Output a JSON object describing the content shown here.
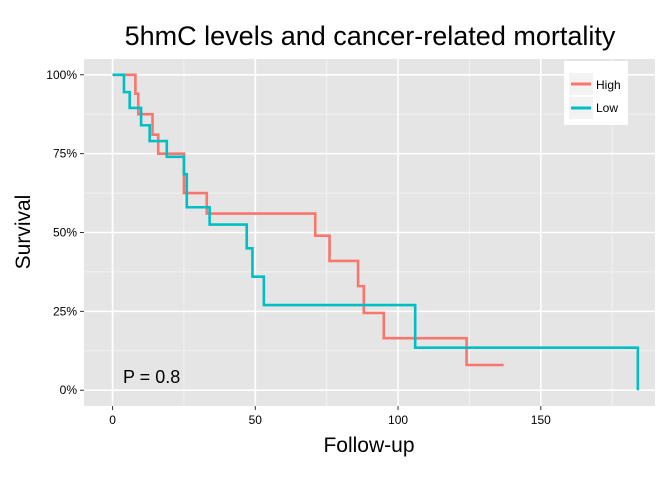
{
  "chart_data": {
    "type": "line",
    "subtype": "kaplan-meier step",
    "title": "5hmC levels and cancer-related mortality",
    "xlabel": "Follow-up",
    "ylabel": "Survival",
    "xlim": [
      -10,
      190
    ],
    "ylim": [
      -0.05,
      1.05
    ],
    "x_ticks": [
      0,
      50,
      100,
      150
    ],
    "x_tick_labels": [
      "0",
      "50",
      "100",
      "150"
    ],
    "y_ticks": [
      0,
      0.25,
      0.5,
      0.75,
      1.0
    ],
    "y_tick_labels": [
      "0%",
      "25%",
      "50%",
      "75%",
      "100%"
    ],
    "grid": true,
    "legend_position": "top-right",
    "annotation": "P = 0.8",
    "series": [
      {
        "name": "High",
        "color": "#F8766D",
        "points": [
          [
            0,
            1.0
          ],
          [
            8,
            1.0
          ],
          [
            8,
            0.94
          ],
          [
            9,
            0.94
          ],
          [
            9,
            0.875
          ],
          [
            14,
            0.875
          ],
          [
            14,
            0.81
          ],
          [
            16,
            0.81
          ],
          [
            16,
            0.75
          ],
          [
            25,
            0.75
          ],
          [
            25,
            0.625
          ],
          [
            33,
            0.625
          ],
          [
            33,
            0.56
          ],
          [
            71,
            0.56
          ],
          [
            71,
            0.49
          ],
          [
            76,
            0.49
          ],
          [
            76,
            0.41
          ],
          [
            86,
            0.41
          ],
          [
            86,
            0.33
          ],
          [
            88,
            0.33
          ],
          [
            88,
            0.245
          ],
          [
            95,
            0.245
          ],
          [
            95,
            0.165
          ],
          [
            124,
            0.165
          ],
          [
            124,
            0.08
          ],
          [
            137,
            0.08
          ]
        ]
      },
      {
        "name": "Low",
        "color": "#00BFC4",
        "points": [
          [
            0,
            1.0
          ],
          [
            4,
            1.0
          ],
          [
            4,
            0.945
          ],
          [
            6,
            0.945
          ],
          [
            6,
            0.895
          ],
          [
            10,
            0.895
          ],
          [
            10,
            0.84
          ],
          [
            13,
            0.84
          ],
          [
            13,
            0.79
          ],
          [
            19,
            0.79
          ],
          [
            19,
            0.74
          ],
          [
            25,
            0.74
          ],
          [
            25,
            0.685
          ],
          [
            26,
            0.685
          ],
          [
            26,
            0.58
          ],
          [
            34,
            0.58
          ],
          [
            34,
            0.525
          ],
          [
            47,
            0.525
          ],
          [
            47,
            0.45
          ],
          [
            49,
            0.45
          ],
          [
            49,
            0.36
          ],
          [
            53,
            0.36
          ],
          [
            53,
            0.27
          ],
          [
            106,
            0.27
          ],
          [
            106,
            0.135
          ],
          [
            184,
            0.135
          ],
          [
            184,
            0.0
          ]
        ]
      }
    ]
  },
  "colors": {
    "panel_background": "#E5E5E5",
    "grid_major": "#FFFFFF",
    "grid_minor": "#F2F2F2",
    "text": "#000000"
  }
}
